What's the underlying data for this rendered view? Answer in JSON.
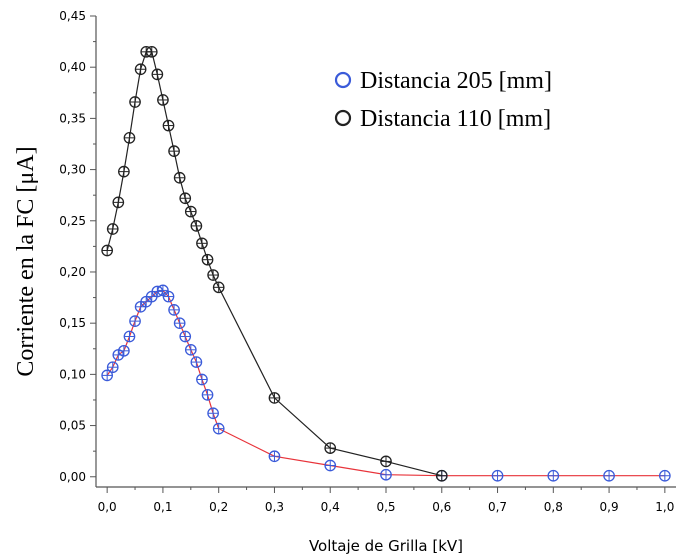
{
  "chart_data": {
    "type": "scatter",
    "title": "",
    "xlabel": "Voltaje de Grilla [kV]",
    "ylabel": "Corriente en la FC [μA]",
    "xlim": [
      -0.02,
      1.02
    ],
    "ylim": [
      -0.01,
      0.45
    ],
    "x_ticks": [
      "0,0",
      "0,1",
      "0,2",
      "0,3",
      "0,4",
      "0,5",
      "0,6",
      "0,7",
      "0,8",
      "0,9",
      "1,0"
    ],
    "y_ticks": [
      "0,00",
      "0,05",
      "0,10",
      "0,15",
      "0,20",
      "0,25",
      "0,30",
      "0,35",
      "0,40",
      "0,45"
    ],
    "grid": false,
    "legend_position": "top-right",
    "series": [
      {
        "name": "Distancia 205 [mm]",
        "marker_color": "#3b5bd9",
        "line_color": "#e8333a",
        "x": [
          0.0,
          0.01,
          0.02,
          0.03,
          0.04,
          0.05,
          0.06,
          0.07,
          0.08,
          0.09,
          0.1,
          0.11,
          0.12,
          0.13,
          0.14,
          0.15,
          0.16,
          0.17,
          0.18,
          0.19,
          0.2,
          0.3,
          0.4,
          0.5,
          0.6,
          0.7,
          0.8,
          0.9,
          1.0
        ],
        "y": [
          0.099,
          0.107,
          0.119,
          0.123,
          0.137,
          0.152,
          0.166,
          0.171,
          0.176,
          0.181,
          0.182,
          0.176,
          0.163,
          0.15,
          0.137,
          0.124,
          0.112,
          0.095,
          0.08,
          0.062,
          0.047,
          0.02,
          0.011,
          0.002,
          0.001,
          0.001,
          0.001,
          0.001,
          0.001
        ]
      },
      {
        "name": "Distancia 110 [mm]",
        "marker_color": "#222222",
        "line_color": "#222222",
        "x": [
          0.0,
          0.01,
          0.02,
          0.03,
          0.04,
          0.05,
          0.06,
          0.07,
          0.08,
          0.09,
          0.1,
          0.11,
          0.12,
          0.13,
          0.14,
          0.15,
          0.16,
          0.17,
          0.18,
          0.19,
          0.2,
          0.3,
          0.4,
          0.5,
          0.6
        ],
        "y": [
          0.221,
          0.242,
          0.268,
          0.298,
          0.331,
          0.366,
          0.398,
          0.415,
          0.415,
          0.393,
          0.368,
          0.343,
          0.318,
          0.292,
          0.272,
          0.259,
          0.245,
          0.228,
          0.212,
          0.197,
          0.185,
          0.077,
          0.028,
          0.015,
          0.001
        ]
      }
    ]
  }
}
